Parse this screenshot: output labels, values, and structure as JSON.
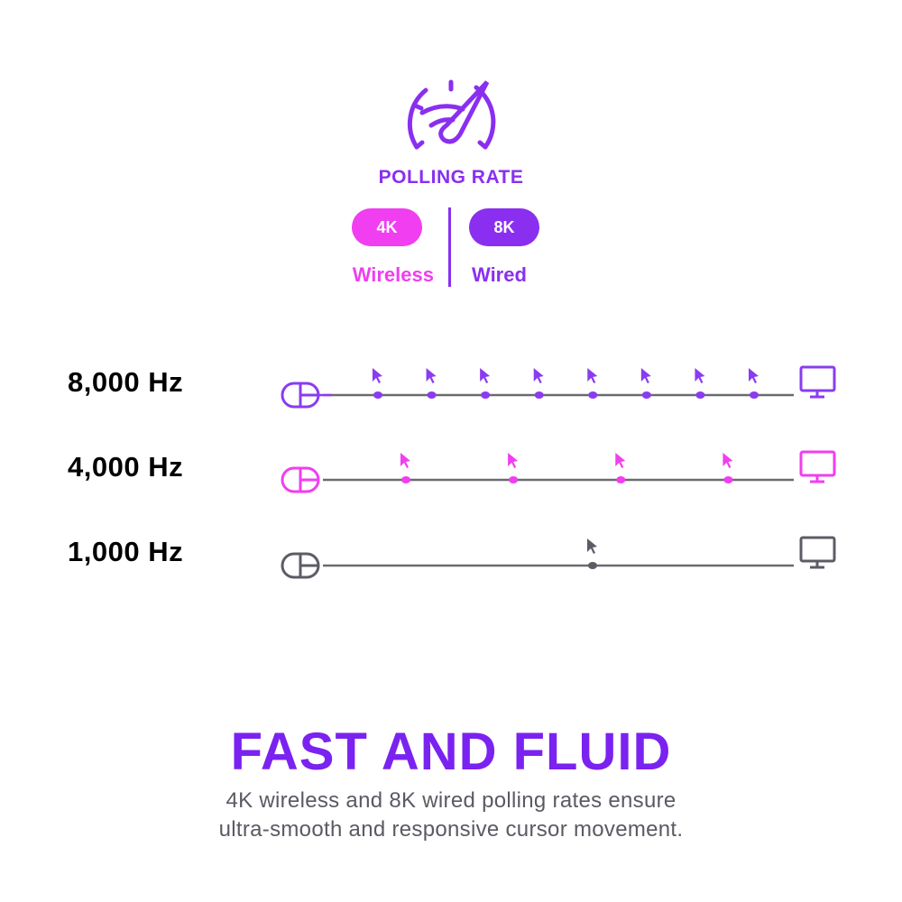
{
  "header": {
    "icon": "speedometer-wifi-icon",
    "title": "POLLING RATE",
    "modes": [
      {
        "badge": "4K",
        "label": "Wireless",
        "color": "#f03ef0"
      },
      {
        "badge": "8K",
        "label": "Wired",
        "color": "#8a2ff0"
      }
    ]
  },
  "rates": [
    {
      "label": "8,000 Hz",
      "color": "#8a3cf0",
      "reports_shown": 8
    },
    {
      "label": "4,000 Hz",
      "color": "#f03ef0",
      "reports_shown": 4
    },
    {
      "label": "1,000 Hz",
      "color": "#5c5c66",
      "reports_shown": 1
    }
  ],
  "icons": {
    "source": "mouse-icon",
    "report": "cursor-icon",
    "target": "monitor-icon"
  },
  "line_color": "#6a6a70",
  "footer": {
    "headline": "FAST AND FLUID",
    "description_line1": "4K wireless and 8K wired polling rates ensure",
    "description_line2": "ultra-smooth and responsive cursor movement."
  }
}
